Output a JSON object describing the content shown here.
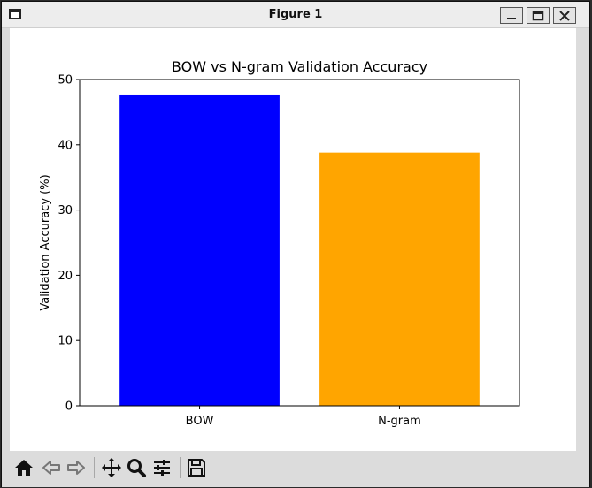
{
  "window": {
    "title": "Figure 1",
    "buttons": {
      "minimize": "minimize-icon",
      "maximize": "maximize-icon",
      "close": "close-icon"
    }
  },
  "toolbar": {
    "tools": [
      "home-icon",
      "back-icon",
      "forward-icon",
      "pan-icon",
      "zoom-icon",
      "configure-subplots-icon",
      "save-icon"
    ]
  },
  "chart_data": {
    "type": "bar",
    "title": "BOW vs N-gram Validation Accuracy",
    "xlabel": "",
    "ylabel": "Validation Accuracy (%)",
    "categories": [
      "BOW",
      "N-gram"
    ],
    "values": [
      47.7,
      38.8
    ],
    "colors": [
      "#0000ff",
      "#ffa500"
    ],
    "ylim": [
      0,
      50
    ],
    "yticks": [
      0,
      10,
      20,
      30,
      40,
      50
    ],
    "grid": false,
    "legend": "none"
  }
}
